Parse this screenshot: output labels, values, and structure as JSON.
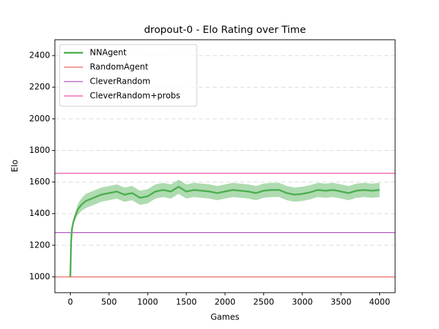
{
  "chart_data": {
    "type": "line",
    "title": "dropout-0 - Elo Rating over Time",
    "x_label": "Games",
    "y_label": "Elo",
    "x": [
      0,
      10,
      20,
      40,
      75,
      100,
      150,
      200,
      300,
      400,
      500,
      600,
      700,
      800,
      900,
      1000,
      1100,
      1200,
      1300,
      1400,
      1500,
      1600,
      1700,
      1800,
      1900,
      2000,
      2100,
      2200,
      2300,
      2400,
      2500,
      2600,
      2700,
      2800,
      2900,
      3000,
      3100,
      3200,
      3300,
      3400,
      3500,
      3600,
      3700,
      3800,
      3900,
      4000
    ],
    "series": [
      {
        "name": "NNAgent",
        "color": "#4caf50",
        "values": [
          1000,
          1220,
          1300,
          1350,
          1400,
          1430,
          1460,
          1480,
          1500,
          1520,
          1530,
          1540,
          1520,
          1530,
          1500,
          1510,
          1540,
          1550,
          1540,
          1570,
          1540,
          1550,
          1545,
          1540,
          1530,
          1540,
          1550,
          1545,
          1540,
          1530,
          1545,
          1550,
          1550,
          1530,
          1520,
          1525,
          1535,
          1550,
          1545,
          1550,
          1540,
          1530,
          1545,
          1550,
          1545,
          1550
        ],
        "lower": [
          1000,
          1210,
          1285,
          1330,
          1375,
          1395,
          1420,
          1435,
          1455,
          1475,
          1485,
          1495,
          1475,
          1485,
          1455,
          1465,
          1495,
          1505,
          1495,
          1525,
          1495,
          1505,
          1500,
          1495,
          1485,
          1495,
          1505,
          1500,
          1495,
          1485,
          1500,
          1505,
          1505,
          1485,
          1475,
          1480,
          1490,
          1505,
          1500,
          1505,
          1495,
          1485,
          1500,
          1505,
          1500,
          1505
        ],
        "upper": [
          1000,
          1230,
          1315,
          1370,
          1425,
          1465,
          1500,
          1525,
          1545,
          1565,
          1575,
          1585,
          1565,
          1575,
          1545,
          1555,
          1585,
          1595,
          1585,
          1615,
          1585,
          1595,
          1590,
          1585,
          1575,
          1585,
          1595,
          1590,
          1585,
          1575,
          1590,
          1595,
          1595,
          1575,
          1565,
          1570,
          1580,
          1595,
          1590,
          1595,
          1585,
          1575,
          1590,
          1595,
          1590,
          1595
        ]
      }
    ],
    "hlines": [
      {
        "name": "RandomAgent",
        "color": "#e53935",
        "value": 1000
      },
      {
        "name": "CleverRandom",
        "color": "#9c27b0",
        "value": 1280
      },
      {
        "name": "CleverRandom+probs",
        "color": "#e91e8c",
        "value": 1655
      }
    ],
    "xlim": [
      -200,
      4200
    ],
    "ylim": [
      900,
      2500
    ],
    "xticks": [
      0,
      500,
      1000,
      1500,
      2000,
      2500,
      3000,
      3500,
      4000
    ],
    "yticks": [
      1000,
      1200,
      1400,
      1600,
      1800,
      2000,
      2200,
      2400
    ],
    "grid": true,
    "legend": "upper left"
  }
}
